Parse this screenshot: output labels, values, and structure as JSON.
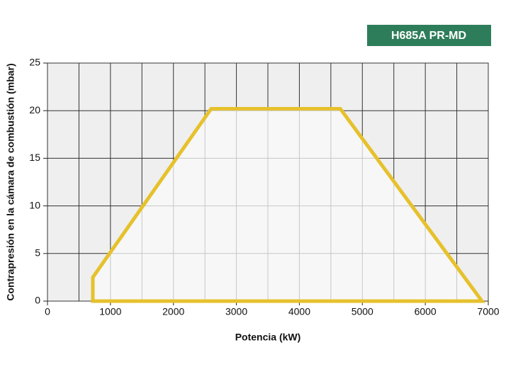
{
  "chart_data": {
    "type": "area",
    "badge": "H685A PR-MD",
    "x_label": "Potencia (kW)",
    "y_label": "Contrapresión en la cámara de combustión (mbar)",
    "x": [
      720,
      720,
      2600,
      4650,
      6900
    ],
    "values": [
      0,
      2.5,
      20.2,
      20.2,
      0
    ],
    "closed": true,
    "color": "#e6c12c",
    "fill": "#fafafa",
    "badge_color": "#2e7d5a",
    "xlim": [
      0,
      7000
    ],
    "xticks": [
      0,
      1000,
      2000,
      3000,
      4000,
      5000,
      6000,
      7000
    ],
    "ylim": [
      0,
      25
    ],
    "yticks": [
      0,
      5,
      10,
      15,
      20,
      25
    ],
    "grid": true,
    "x_minor_grid": true
  }
}
